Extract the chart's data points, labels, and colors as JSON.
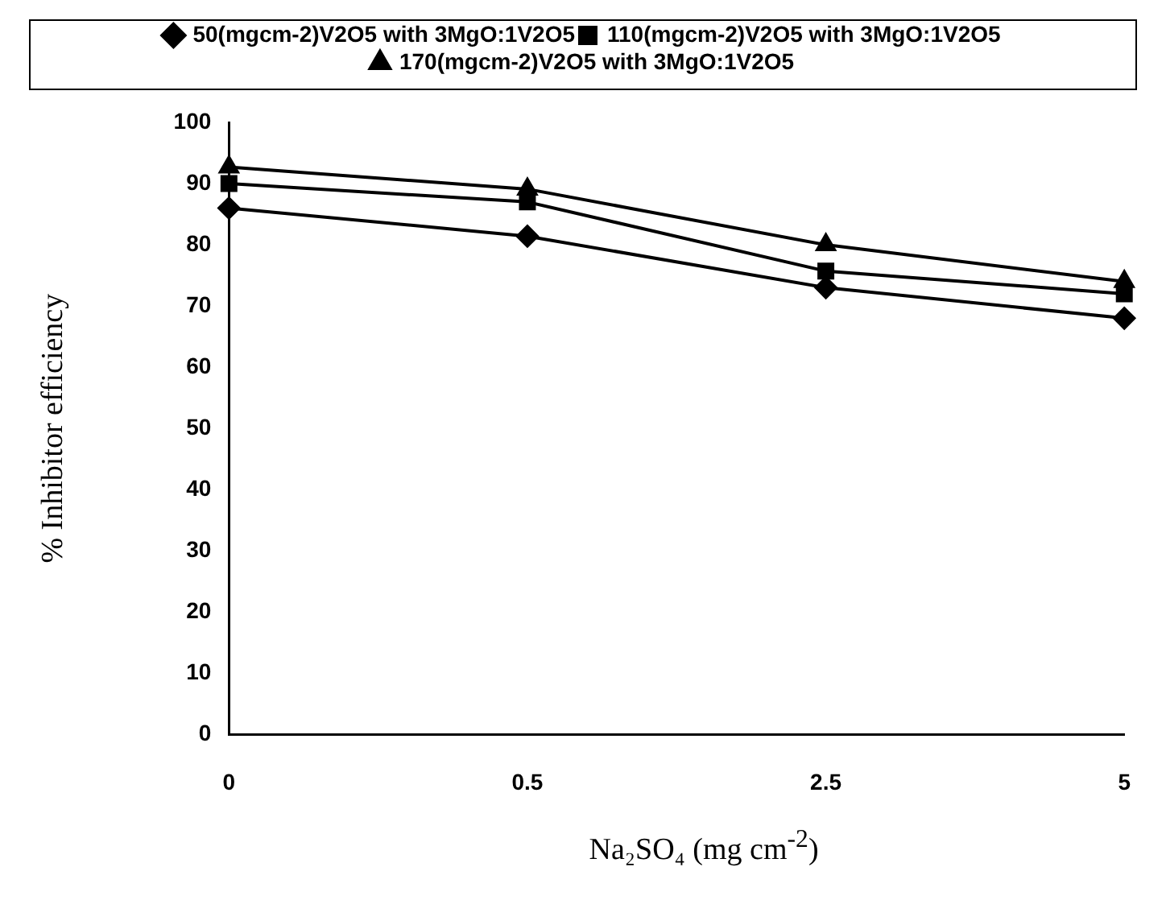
{
  "chart_data": {
    "type": "line",
    "xlabel": "Na₂SO₄ (mg cm$^{-2}$)",
    "ylabel": "% Inhibitor efficiency",
    "categories": [
      "0",
      "0.5",
      "2.5",
      "5"
    ],
    "ylim": [
      0,
      100
    ],
    "yticks": [
      0,
      10,
      20,
      30,
      40,
      50,
      60,
      70,
      80,
      90,
      100
    ],
    "grid": false,
    "legend": "top",
    "line_style": "solid",
    "series": [
      {
        "name": "50(mgcm-2)V2O5 with 3MgO:1V2O5",
        "color": "#000000",
        "marker": "diamond",
        "values": [
          86,
          81.4,
          73,
          68
        ]
      },
      {
        "name": "110(mgcm-2)V2O5 with 3MgO:1V2O5",
        "color": "#000000",
        "marker": "square",
        "values": [
          90,
          87,
          75.7,
          72
        ]
      },
      {
        "name": "170(mgcm-2)V2O5 with 3MgO:1V2O5",
        "color": "#000000",
        "marker": "triangle",
        "values": [
          92.7,
          89.1,
          80,
          74
        ]
      }
    ]
  }
}
